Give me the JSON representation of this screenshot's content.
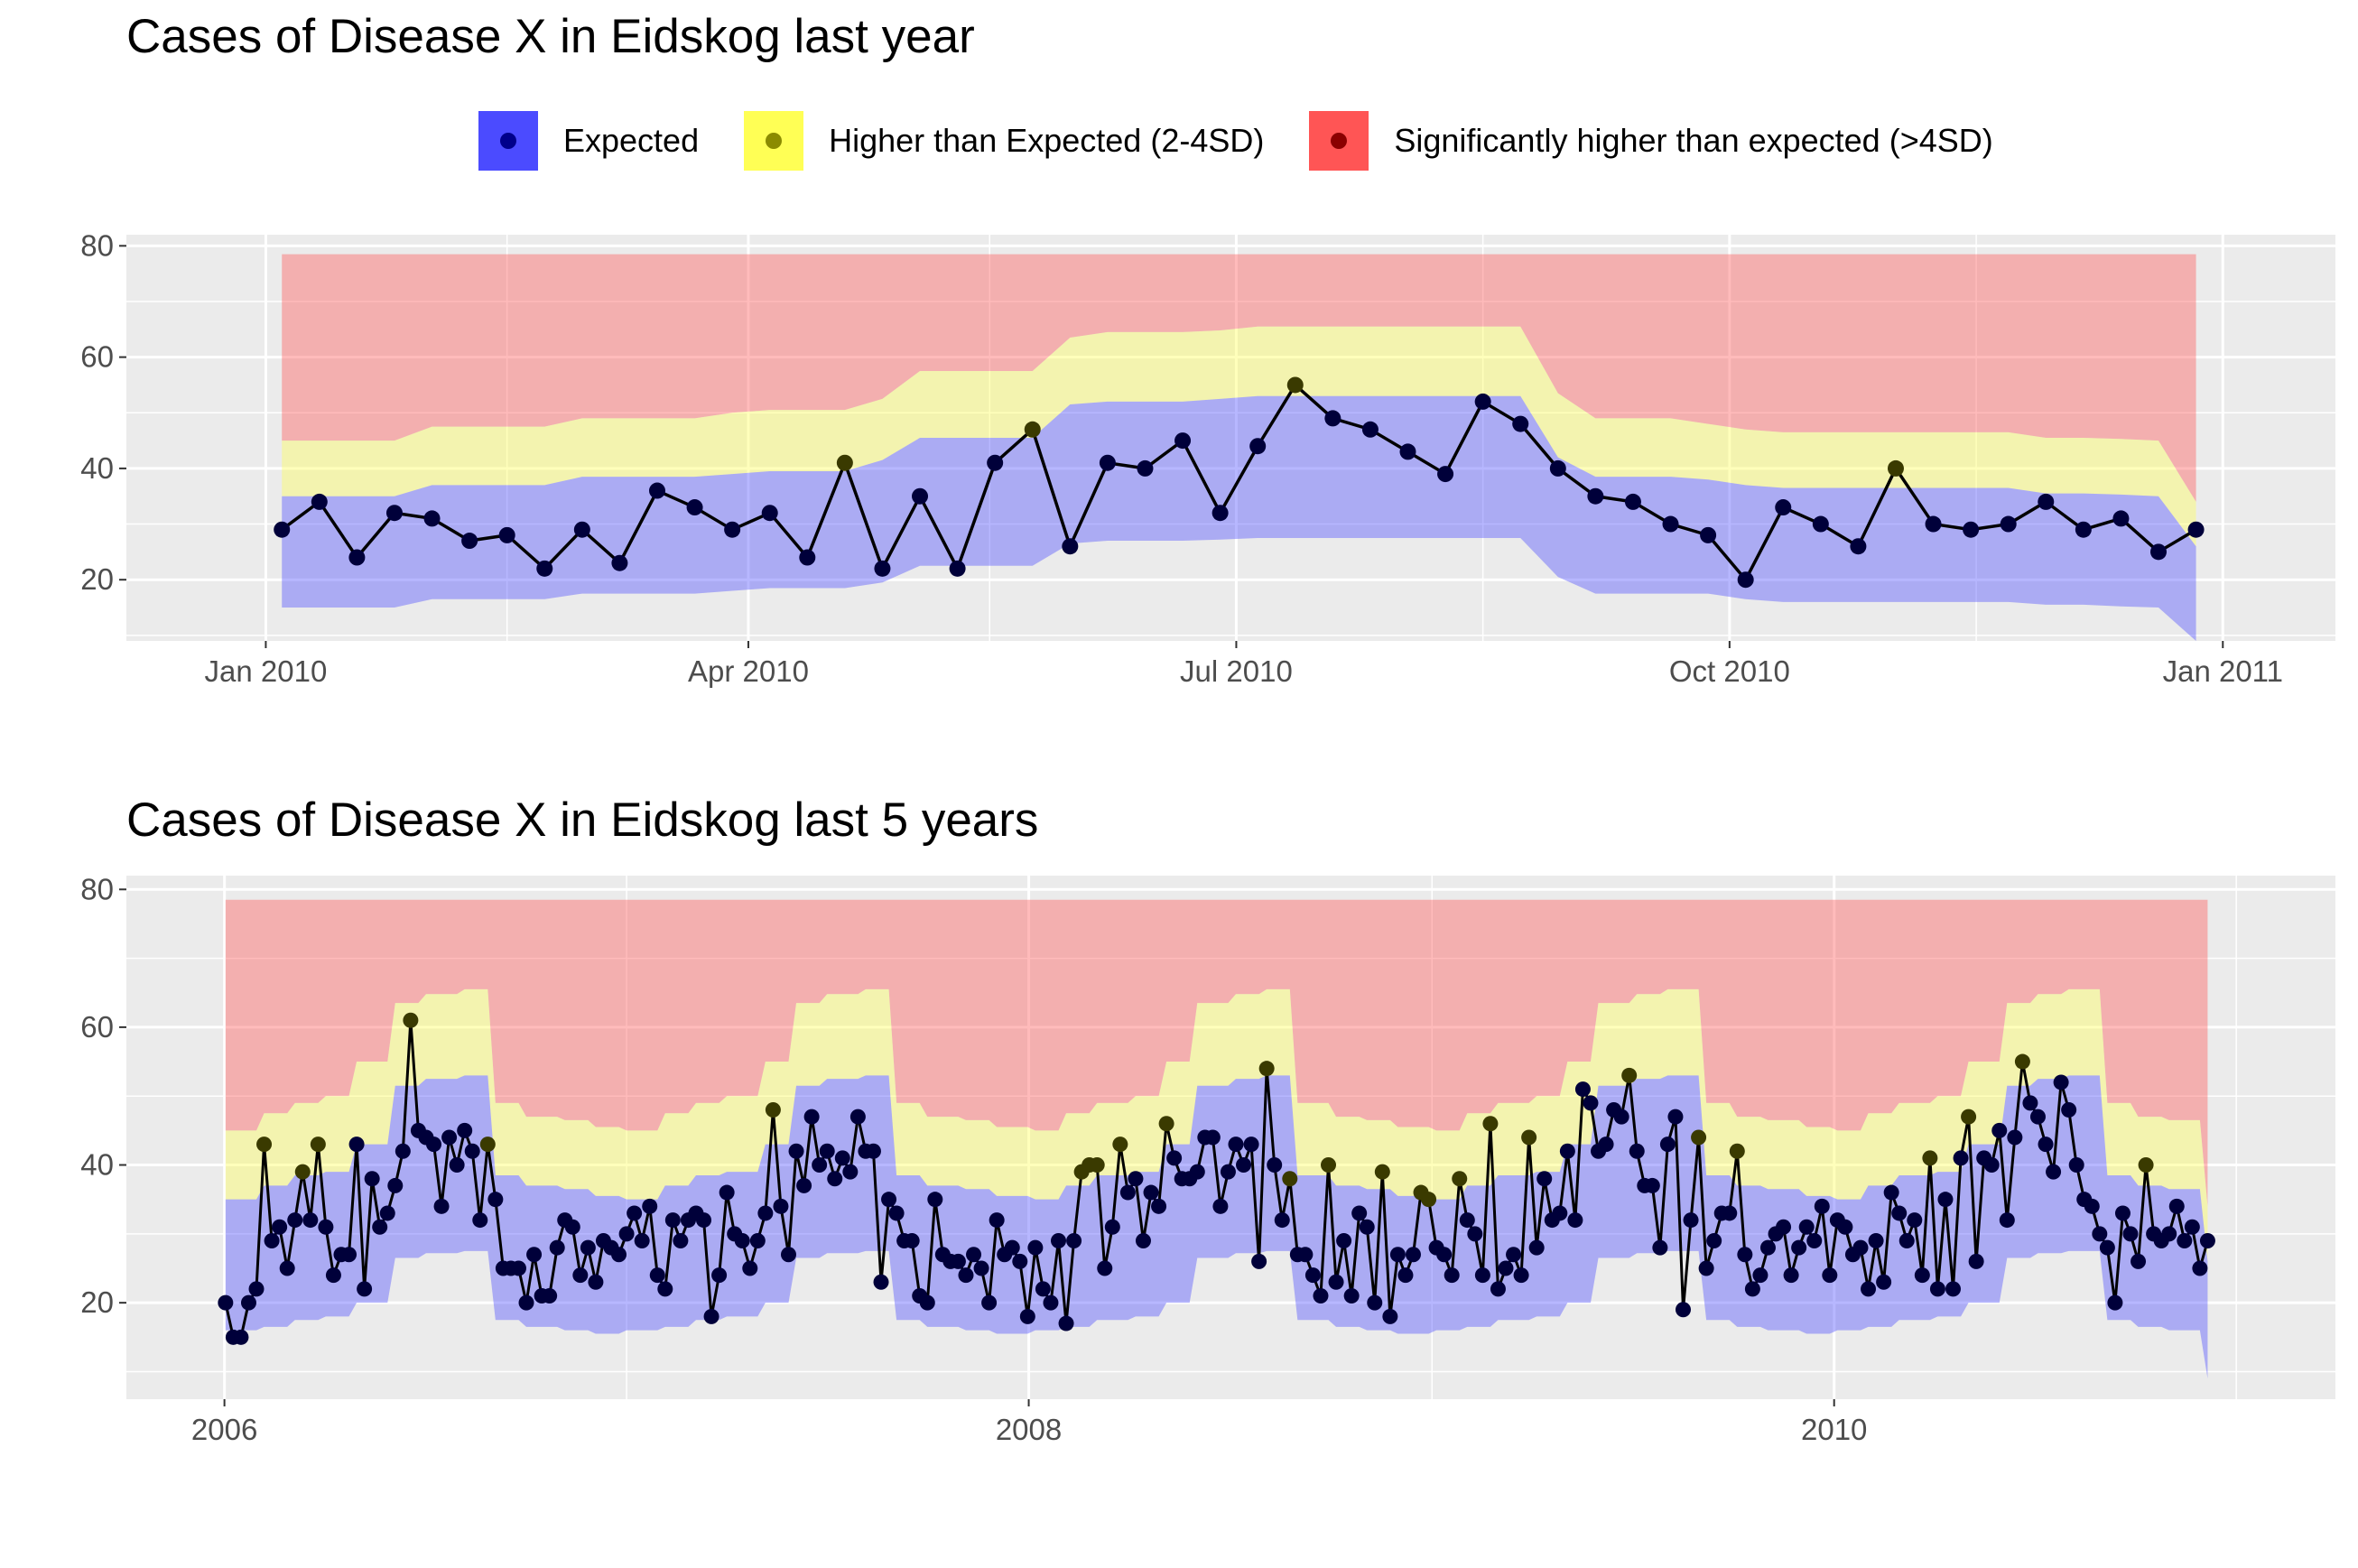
{
  "legend": [
    {
      "label": "Expected",
      "color": "#4b4bff",
      "dot": "#00008b"
    },
    {
      "label": "Higher than Expected (2-4SD)",
      "color": "#ffff55",
      "dot": "#8b8b00"
    },
    {
      "label": "Significantly higher than expected (>4SD)",
      "color": "#ff5555",
      "dot": "#8b0000"
    }
  ],
  "chart_data": [
    {
      "type": "line",
      "title": "Cases of Disease X in Eidskog last year",
      "xlabel": "",
      "ylabel": "",
      "x_ticks": [
        "Jan 2010",
        "Apr 2010",
        "Jul 2010",
        "Oct 2010",
        "Jan 2011"
      ],
      "y_ticks": [
        20,
        40,
        60,
        80
      ],
      "ylim": [
        9,
        82
      ],
      "grid": true,
      "x": [
        "2010-01-04",
        "2010-01-11",
        "2010-01-18",
        "2010-01-25",
        "2010-02-01",
        "2010-02-08",
        "2010-02-15",
        "2010-02-22",
        "2010-03-01",
        "2010-03-08",
        "2010-03-15",
        "2010-03-22",
        "2010-03-29",
        "2010-04-05",
        "2010-04-12",
        "2010-04-19",
        "2010-04-26",
        "2010-05-03",
        "2010-05-10",
        "2010-05-17",
        "2010-05-24",
        "2010-05-31",
        "2010-06-07",
        "2010-06-14",
        "2010-06-21",
        "2010-06-28",
        "2010-07-05",
        "2010-07-12",
        "2010-07-19",
        "2010-07-26",
        "2010-08-02",
        "2010-08-09",
        "2010-08-16",
        "2010-08-23",
        "2010-08-30",
        "2010-09-06",
        "2010-09-13",
        "2010-09-20",
        "2010-09-27",
        "2010-10-04",
        "2010-10-11",
        "2010-10-18",
        "2010-10-25",
        "2010-11-01",
        "2010-11-08",
        "2010-11-15",
        "2010-11-22",
        "2010-11-29",
        "2010-12-06",
        "2010-12-13",
        "2010-12-20",
        "2010-12-27"
      ],
      "cases": [
        29,
        34,
        24,
        32,
        31,
        27,
        28,
        22,
        29,
        23,
        36,
        33,
        29,
        32,
        24,
        41,
        22,
        35,
        22,
        41,
        47,
        26,
        41,
        40,
        45,
        32,
        44,
        55,
        49,
        47,
        43,
        39,
        52,
        48,
        40,
        35,
        34,
        30,
        28,
        20,
        33,
        30,
        26,
        40,
        30,
        29,
        30,
        34,
        29,
        31,
        25,
        29
      ],
      "band_lower": [
        15,
        15,
        15,
        15,
        16.5,
        16.5,
        16.5,
        16.5,
        17.5,
        17.5,
        17.5,
        17.5,
        18,
        18.5,
        18.5,
        18.5,
        19.5,
        22.5,
        22.5,
        22.5,
        22.5,
        26.5,
        27,
        27,
        27,
        27.2,
        27.5,
        27.5,
        27.5,
        27.5,
        27.5,
        27.5,
        27.5,
        27.5,
        20.5,
        17.5,
        17.5,
        17.5,
        17.5,
        16.5,
        16,
        16,
        16,
        16,
        16,
        16,
        16,
        15.5,
        15.5,
        15.2,
        15,
        9
      ],
      "band_expected_upper": [
        35,
        35,
        35,
        35,
        37,
        37,
        37,
        37,
        38.5,
        38.5,
        38.5,
        38.5,
        39,
        39.5,
        39.5,
        39.5,
        41.5,
        45.5,
        45.5,
        45.5,
        45.5,
        51.5,
        52,
        52,
        52,
        52.5,
        53,
        53,
        53,
        53,
        53,
        53,
        53,
        53,
        42,
        38.5,
        38.5,
        38.5,
        38,
        37,
        36.5,
        36.5,
        36.5,
        36.5,
        36.5,
        36.5,
        36.5,
        35.5,
        35.5,
        35.3,
        35,
        26
      ],
      "band_higher_upper": [
        45,
        45,
        45,
        45,
        47.5,
        47.5,
        47.5,
        47.5,
        49,
        49,
        49,
        49,
        50,
        50.5,
        50.5,
        50.5,
        52.5,
        57.5,
        57.5,
        57.5,
        57.5,
        63.5,
        64.5,
        64.5,
        64.5,
        64.8,
        65.5,
        65.5,
        65.5,
        65.5,
        65.5,
        65.5,
        65.5,
        65.5,
        53.5,
        49,
        49,
        49,
        48,
        47,
        46.5,
        46.5,
        46.5,
        46.5,
        46.5,
        46.5,
        46.5,
        45.5,
        45.5,
        45.3,
        45,
        34
      ],
      "band_top": 78.5,
      "point_status": [
        0,
        0,
        0,
        0,
        0,
        0,
        0,
        0,
        0,
        0,
        0,
        0,
        0,
        0,
        0,
        1,
        0,
        0,
        0,
        0,
        1,
        0,
        0,
        0,
        0,
        0,
        0,
        1,
        0,
        0,
        0,
        0,
        0,
        0,
        0,
        0,
        0,
        0,
        0,
        0,
        0,
        0,
        0,
        1,
        0,
        0,
        0,
        0,
        0,
        0,
        0,
        0
      ]
    },
    {
      "type": "line",
      "title": "Cases of Disease X in Eidskog last 5 years",
      "xlabel": "",
      "ylabel": "",
      "x_ticks": [
        "2006",
        "2008",
        "2010"
      ],
      "y_ticks": [
        20,
        40,
        60,
        80
      ],
      "ylim": [
        6,
        82
      ],
      "grid": true,
      "x_start": "2006-01-02",
      "x_step_days": 7,
      "cases": [
        20,
        15,
        15,
        20,
        22,
        43,
        29,
        31,
        25,
        32,
        39,
        32,
        43,
        31,
        24,
        27,
        27,
        43,
        22,
        38,
        31,
        33,
        37,
        42,
        61,
        45,
        44,
        43,
        34,
        44,
        40,
        45,
        42,
        32,
        43,
        35,
        25,
        25,
        25,
        20,
        27,
        21,
        21,
        28,
        32,
        31,
        24,
        28,
        23,
        29,
        28,
        27,
        30,
        33,
        29,
        34,
        24,
        22,
        32,
        29,
        32,
        33,
        32,
        18,
        24,
        36,
        30,
        29,
        25,
        29,
        33,
        48,
        34,
        27,
        42,
        37,
        47,
        40,
        42,
        38,
        41,
        39,
        47,
        42,
        42,
        23,
        35,
        33,
        29,
        29,
        21,
        20,
        35,
        27,
        26,
        26,
        24,
        27,
        25,
        20,
        32,
        27,
        28,
        26,
        18,
        28,
        22,
        20,
        29,
        17,
        29,
        39,
        40,
        40,
        25,
        31,
        43,
        36,
        38,
        29,
        36,
        34,
        46,
        41,
        38,
        38,
        39,
        44,
        44,
        34,
        39,
        43,
        40,
        43,
        26,
        54,
        40,
        32,
        38,
        27,
        27,
        24,
        21,
        40,
        23,
        29,
        21,
        33,
        31,
        20,
        39,
        18,
        27,
        24,
        27,
        36,
        35,
        28,
        27,
        24,
        38,
        32,
        30,
        24,
        46,
        22,
        25,
        27,
        24,
        44,
        28,
        38,
        32,
        33,
        42,
        32,
        51,
        49,
        42,
        43,
        48,
        47,
        53,
        42,
        37,
        37,
        28,
        43,
        47,
        19,
        32,
        44,
        25,
        29,
        33,
        33,
        42,
        27,
        22,
        24,
        28,
        30,
        31,
        24,
        28,
        31,
        29,
        34,
        24,
        32,
        31,
        27,
        28,
        22,
        29,
        23,
        36,
        33,
        29,
        32,
        24,
        41,
        22,
        35,
        22,
        41,
        47,
        26,
        41,
        40,
        45,
        32,
        44,
        55,
        49,
        47,
        43,
        39,
        52,
        48,
        40,
        35,
        34,
        30,
        28,
        20,
        33,
        30,
        26,
        40,
        30,
        29,
        30,
        34,
        29,
        31,
        25,
        29
      ],
      "point_status": [
        0,
        0,
        0,
        0,
        0,
        1,
        0,
        0,
        0,
        0,
        1,
        0,
        1,
        0,
        0,
        0,
        0,
        0,
        0,
        0,
        0,
        0,
        0,
        0,
        1,
        0,
        0,
        0,
        0,
        0,
        0,
        0,
        0,
        0,
        1,
        0,
        0,
        0,
        0,
        0,
        0,
        0,
        0,
        0,
        0,
        0,
        0,
        0,
        0,
        0,
        0,
        0,
        0,
        0,
        0,
        0,
        0,
        0,
        0,
        0,
        0,
        0,
        0,
        0,
        0,
        0,
        0,
        0,
        0,
        0,
        0,
        1,
        0,
        0,
        0,
        0,
        0,
        0,
        0,
        0,
        0,
        0,
        0,
        0,
        0,
        0,
        0,
        0,
        0,
        0,
        0,
        0,
        0,
        0,
        0,
        0,
        0,
        0,
        0,
        0,
        0,
        0,
        0,
        0,
        0,
        0,
        0,
        0,
        0,
        0,
        0,
        1,
        1,
        1,
        0,
        0,
        1,
        0,
        0,
        0,
        0,
        0,
        1,
        0,
        0,
        0,
        0,
        0,
        0,
        0,
        0,
        0,
        0,
        0,
        0,
        1,
        0,
        0,
        1,
        0,
        0,
        0,
        0,
        1,
        0,
        0,
        0,
        0,
        0,
        0,
        1,
        0,
        0,
        0,
        0,
        1,
        1,
        0,
        0,
        0,
        1,
        0,
        0,
        0,
        1,
        0,
        0,
        0,
        0,
        1,
        0,
        0,
        0,
        0,
        0,
        0,
        0,
        0,
        0,
        0,
        0,
        0,
        1,
        0,
        0,
        0,
        0,
        0,
        0,
        0,
        0,
        1,
        0,
        0,
        0,
        0,
        1,
        0,
        0,
        0,
        0,
        0,
        0,
        0,
        0,
        0,
        0,
        0,
        0,
        0,
        0,
        0,
        0,
        0,
        0,
        0,
        0,
        0,
        0,
        0,
        0,
        1,
        0,
        0,
        0,
        0,
        1,
        0,
        0,
        0,
        0,
        0,
        0,
        1,
        0,
        0,
        0,
        0,
        0,
        0,
        0,
        0,
        0,
        0,
        0,
        0,
        0,
        0,
        0,
        1,
        0,
        0,
        0,
        0,
        0,
        0,
        0,
        0,
        0
      ],
      "band_top": 78.5,
      "band_profile_by_month": {
        "lower": [
          16,
          16.5,
          17.5,
          18,
          20,
          26.5,
          27.2,
          27.5,
          17.5,
          16.5,
          16,
          15.5
        ],
        "expected_upper": [
          35,
          37,
          38.5,
          39,
          43,
          51.5,
          52.5,
          53,
          38.5,
          37,
          36.5,
          35.5
        ],
        "higher_upper": [
          45,
          47.5,
          49,
          50,
          55,
          63.5,
          64.8,
          65.5,
          49,
          47,
          46.5,
          45.5
        ]
      },
      "band_end": {
        "lower": 9,
        "expected_upper": 26,
        "higher_upper": 34
      }
    }
  ]
}
